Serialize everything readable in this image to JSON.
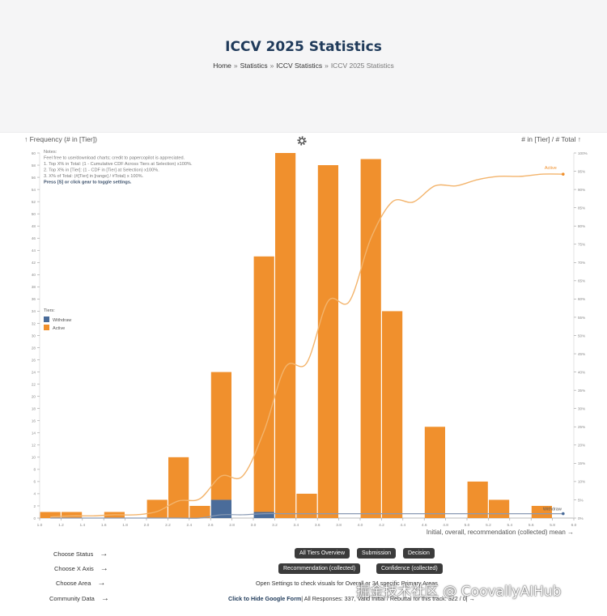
{
  "header": {
    "title": "ICCV 2025 Statistics",
    "breadcrumb": [
      {
        "label": "Home"
      },
      {
        "label": "Statistics"
      },
      {
        "label": "ICCV Statistics"
      },
      {
        "label": "ICCV 2025 Statistics",
        "current": true
      }
    ],
    "separator": "»"
  },
  "chart_data": {
    "type": "bar",
    "left_axis_label": "↑ Frequency (# in [Tier])",
    "right_axis_label": "# in [Tier] / # Total ↑",
    "xlabel": "Initial, overall, recommendation (collected) mean →",
    "x_ticks": [
      "1.0",
      "1.2",
      "1.4",
      "1.6",
      "1.8",
      "2.0",
      "2.2",
      "2.4",
      "2.6",
      "2.8",
      "3.0",
      "3.2",
      "3.4",
      "3.6",
      "3.8",
      "4.0",
      "4.2",
      "4.4",
      "4.6",
      "4.8",
      "5.0",
      "5.2",
      "5.4",
      "5.6",
      "5.8",
      "6.0"
    ],
    "xlim": [
      1.0,
      6.0
    ],
    "ylim": [
      0,
      60
    ],
    "y_ticks": [
      0,
      2,
      4,
      6,
      8,
      10,
      12,
      14,
      16,
      18,
      20,
      22,
      24,
      26,
      28,
      30,
      32,
      34,
      36,
      38,
      40,
      42,
      44,
      46,
      48,
      50,
      52,
      54,
      56,
      58,
      60
    ],
    "right_ylim": [
      0,
      100
    ],
    "right_ticks": [
      "0%",
      "5%",
      "10%",
      "15%",
      "20%",
      "25%",
      "30%",
      "35%",
      "40%",
      "45%",
      "50%",
      "55%",
      "60%",
      "65%",
      "70%",
      "75%",
      "80%",
      "85%",
      "90%",
      "95%",
      "100%"
    ],
    "bin_width": 0.2,
    "categories": [
      "1.0",
      "1.2",
      "1.4",
      "1.6",
      "1.8",
      "2.0",
      "2.2",
      "2.4",
      "2.6",
      "2.8",
      "3.0",
      "3.2",
      "3.4",
      "3.6",
      "3.8",
      "4.0",
      "4.2",
      "4.4",
      "4.6",
      "4.8",
      "5.0",
      "5.2",
      "5.4",
      "5.6",
      "5.8"
    ],
    "series": [
      {
        "name": "Withdraw",
        "color": "#4a6c9a",
        "values": [
          0,
          0,
          0,
          0,
          0,
          0,
          0,
          0,
          3,
          0,
          1,
          0,
          0,
          0,
          0,
          0,
          0,
          0,
          0,
          0,
          0,
          0,
          0,
          0,
          0
        ]
      },
      {
        "name": "Active",
        "color": "#f0902d",
        "values": [
          1,
          1,
          0,
          1,
          0,
          3,
          10,
          2,
          21,
          0,
          42,
          60,
          4,
          58,
          0,
          59,
          34,
          0,
          15,
          0,
          6,
          3,
          0,
          2,
          0
        ]
      }
    ],
    "cumulative": {
      "x": [
        1.0,
        1.2,
        1.4,
        1.6,
        1.8,
        2.0,
        2.2,
        2.4,
        2.6,
        2.8,
        3.0,
        3.2,
        3.4,
        3.6,
        3.8,
        4.0,
        4.2,
        4.4,
        4.6,
        4.8,
        5.0,
        5.2,
        5.4,
        5.6,
        5.8
      ],
      "active": [
        0.3,
        0.6,
        0.6,
        0.9,
        0.9,
        1.8,
        4.7,
        5.3,
        11.5,
        11.5,
        23.8,
        41.3,
        42.5,
        59.4,
        59.4,
        76.6,
        86.6,
        86.6,
        91.0,
        91.0,
        92.7,
        93.6,
        93.6,
        94.2,
        94.2
      ],
      "withdraw": [
        0,
        0,
        0,
        0,
        0,
        0,
        0,
        0,
        0.9,
        0.9,
        1.2,
        1.2,
        1.2,
        1.2,
        1.2,
        1.2,
        1.2,
        1.2,
        1.2,
        1.2,
        1.2,
        1.2,
        1.2,
        1.2,
        1.2
      ]
    },
    "line_labels": {
      "active": "Active",
      "withdraw": "Withdraw"
    },
    "legend": {
      "title": "Tiers:",
      "position": "top-left"
    },
    "notes": [
      "Notes:",
      "Feel free to use/download charts; credit to papercopilot is appreciated.",
      "1. Top X% in Total: (1 - Cumulative CDF Across Tiers at Selection) x100%.",
      "2. Top X% in [Tier]: (1 - CDF in [Tier] at Selection) x100%.",
      "3. X% of Total: (#[Tier] in [range] / #Total) x 100%.",
      "Press [S] or click gear to toggle settings."
    ],
    "grid": false
  },
  "controls": {
    "left_menu": [
      {
        "label": "Choose Status",
        "arrow": "→"
      },
      {
        "label": "Choose X Axis",
        "arrow": "→"
      },
      {
        "label": "Choose Area",
        "arrow": "→"
      },
      {
        "label": "Community Data",
        "arrow": "→"
      }
    ],
    "buttons_row1": [
      "All Tiers Overview",
      "Submission",
      "Decision"
    ],
    "buttons_row2": [
      "Recommendation (collected)",
      "Confidence (collected)"
    ],
    "settings_text": "Open Settings to check visuals for Overall or 34 specific Primary Areas",
    "form_link": "Click to Hide Google Form",
    "responses_text": "| All Responses: 337, Valid Initial / Rebuttal for this track: 322 / 0|",
    "responses_arrow": "→"
  },
  "watermark": "掘金技术社区 @ CoovallyAIHub",
  "colors": {
    "active": "#f0902d",
    "withdraw": "#4a6c9a",
    "title": "#1f3a5a",
    "button": "#3b3b3b"
  }
}
